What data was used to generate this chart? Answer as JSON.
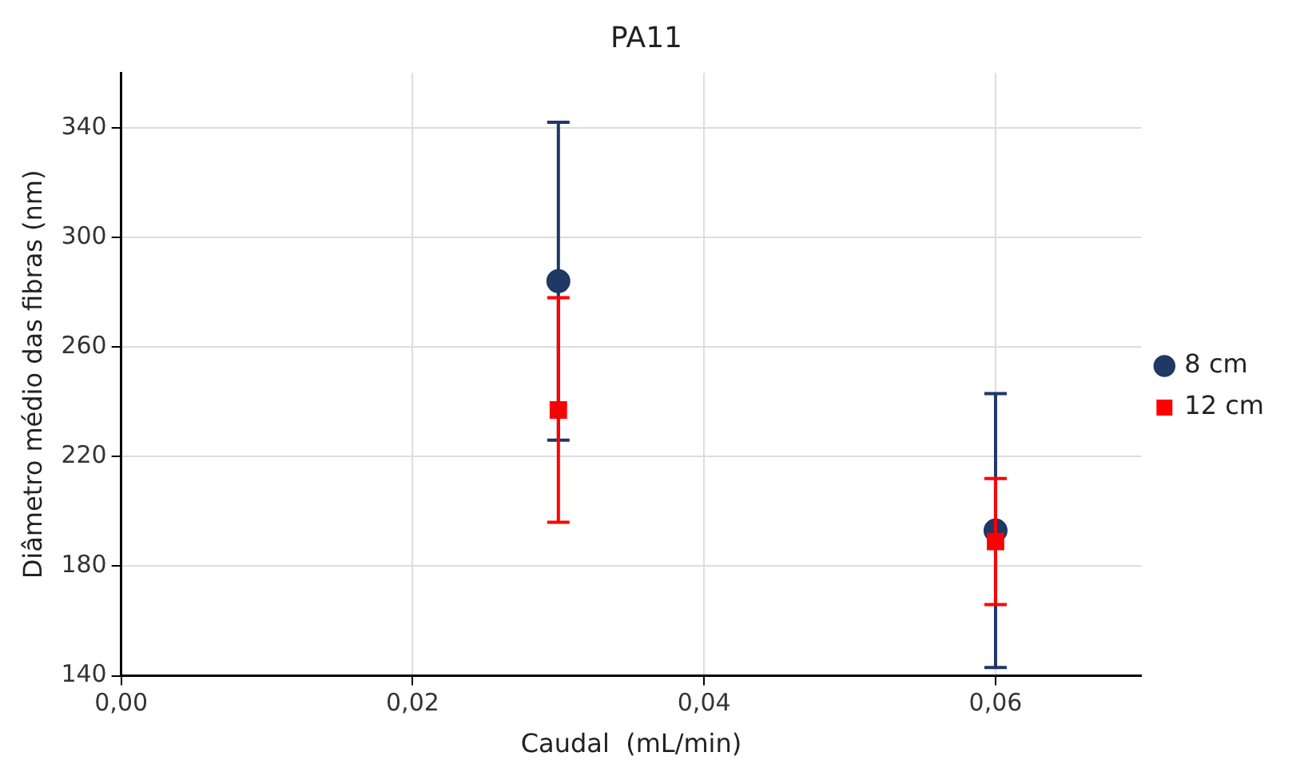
{
  "chart_data": {
    "type": "scatter",
    "title": "PA11",
    "xlabel": "Caudal  (mL/min)",
    "ylabel": "Diâmetro médio das fibras (nm)",
    "xlim": [
      0,
      0.07
    ],
    "xticks": [
      {
        "value": 0,
        "label": "0,00"
      },
      {
        "value": 0.02,
        "label": "0,02"
      },
      {
        "value": 0.04,
        "label": "0,04"
      },
      {
        "value": 0.06,
        "label": "0,06"
      }
    ],
    "x": [
      0.03,
      0.06
    ],
    "ylim": [
      140,
      360
    ],
    "yticks": [
      140,
      180,
      220,
      260,
      300,
      340
    ],
    "grid": true,
    "legend": "right",
    "series": [
      {
        "name": "8 cm",
        "color": "#1f3864",
        "marker": "circle",
        "values": [
          284,
          193
        ],
        "errors": [
          58,
          50
        ]
      },
      {
        "name": "12 cm",
        "color": "#ff0000",
        "marker": "square",
        "values": [
          237,
          189
        ],
        "errors": [
          41,
          23
        ]
      }
    ]
  }
}
